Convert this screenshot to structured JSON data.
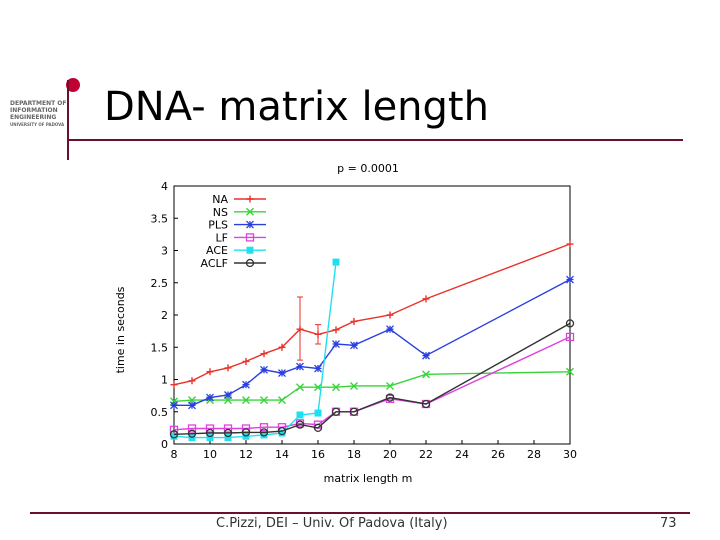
{
  "slide": {
    "title": "DNA- matrix length",
    "logo_lines": [
      "DEPARTMENT OF",
      "INFORMATION",
      "ENGINEERING",
      "UNIVERSITY OF PADOVA"
    ],
    "footer": "C.Pizzi, DEI – Univ. Of Padova (Italy)",
    "page_number": "73",
    "accent_color": "#6b0f2a",
    "dot_color": "#c00032"
  },
  "chart_data": {
    "type": "line",
    "title": "p = 0.0001",
    "xlabel": "matrix length m",
    "ylabel": "time in seconds",
    "xlim": [
      8,
      30
    ],
    "ylim": [
      0,
      4
    ],
    "xticks": [
      "8",
      "10",
      "12",
      "14",
      "16",
      "18",
      "20",
      "22",
      "24",
      "26",
      "28",
      "30"
    ],
    "yticks": [
      "0",
      "0.5",
      "1",
      "1.5",
      "2",
      "2.5",
      "3",
      "3.5",
      "4"
    ],
    "grid": true,
    "legend_position": "top-left",
    "series": [
      {
        "name": "NA",
        "color": "#e8322a",
        "marker": "plus",
        "points": [
          [
            8,
            0.92
          ],
          [
            9,
            0.98
          ],
          [
            10,
            1.12
          ],
          [
            11,
            1.18
          ],
          [
            12,
            1.28
          ],
          [
            13,
            1.4
          ],
          [
            14,
            1.5
          ],
          [
            15,
            1.78
          ],
          [
            16,
            1.7
          ],
          [
            17,
            1.77
          ],
          [
            18,
            1.9
          ],
          [
            20,
            2.0
          ],
          [
            22,
            2.25
          ],
          [
            30,
            3.1
          ]
        ],
        "errors": [
          [
            15,
            1.3,
            2.28
          ],
          [
            16,
            1.55,
            1.85
          ]
        ]
      },
      {
        "name": "NS",
        "color": "#39d439",
        "marker": "x",
        "points": [
          [
            8,
            0.66
          ],
          [
            9,
            0.68
          ],
          [
            10,
            0.68
          ],
          [
            11,
            0.68
          ],
          [
            12,
            0.68
          ],
          [
            13,
            0.68
          ],
          [
            14,
            0.68
          ],
          [
            15,
            0.88
          ],
          [
            16,
            0.88
          ],
          [
            17,
            0.88
          ],
          [
            18,
            0.9
          ],
          [
            20,
            0.9
          ],
          [
            22,
            1.08
          ],
          [
            30,
            1.12
          ]
        ]
      },
      {
        "name": "PLS",
        "color": "#2a3fe0",
        "marker": "star",
        "points": [
          [
            8,
            0.6
          ],
          [
            9,
            0.6
          ],
          [
            10,
            0.72
          ],
          [
            11,
            0.76
          ],
          [
            12,
            0.92
          ],
          [
            13,
            1.15
          ],
          [
            14,
            1.1
          ],
          [
            15,
            1.2
          ],
          [
            16,
            1.17
          ],
          [
            17,
            1.55
          ],
          [
            18,
            1.53
          ],
          [
            20,
            1.78
          ],
          [
            22,
            1.37
          ],
          [
            30,
            2.55
          ]
        ]
      },
      {
        "name": "LF",
        "color": "#e040e0",
        "marker": "square",
        "points": [
          [
            8,
            0.22
          ],
          [
            9,
            0.24
          ],
          [
            10,
            0.24
          ],
          [
            11,
            0.24
          ],
          [
            12,
            0.24
          ],
          [
            13,
            0.26
          ],
          [
            14,
            0.26
          ],
          [
            15,
            0.32
          ],
          [
            16,
            0.3
          ],
          [
            17,
            0.5
          ],
          [
            18,
            0.5
          ],
          [
            20,
            0.7
          ],
          [
            22,
            0.62
          ],
          [
            30,
            1.66
          ]
        ]
      },
      {
        "name": "ACE",
        "color": "#20e0f0",
        "marker": "filled-square",
        "points": [
          [
            8,
            0.12
          ],
          [
            9,
            0.1
          ],
          [
            10,
            0.1
          ],
          [
            11,
            0.1
          ],
          [
            12,
            0.12
          ],
          [
            13,
            0.14
          ],
          [
            14,
            0.17
          ],
          [
            15,
            0.45
          ],
          [
            16,
            0.48
          ],
          [
            17,
            2.82
          ]
        ]
      },
      {
        "name": "ACLF",
        "color": "#333333",
        "marker": "circle",
        "points": [
          [
            8,
            0.15
          ],
          [
            9,
            0.16
          ],
          [
            10,
            0.17
          ],
          [
            11,
            0.17
          ],
          [
            12,
            0.18
          ],
          [
            13,
            0.18
          ],
          [
            14,
            0.2
          ],
          [
            15,
            0.3
          ],
          [
            16,
            0.25
          ],
          [
            17,
            0.5
          ],
          [
            18,
            0.5
          ],
          [
            20,
            0.72
          ],
          [
            22,
            0.62
          ],
          [
            30,
            1.87
          ]
        ]
      }
    ]
  }
}
